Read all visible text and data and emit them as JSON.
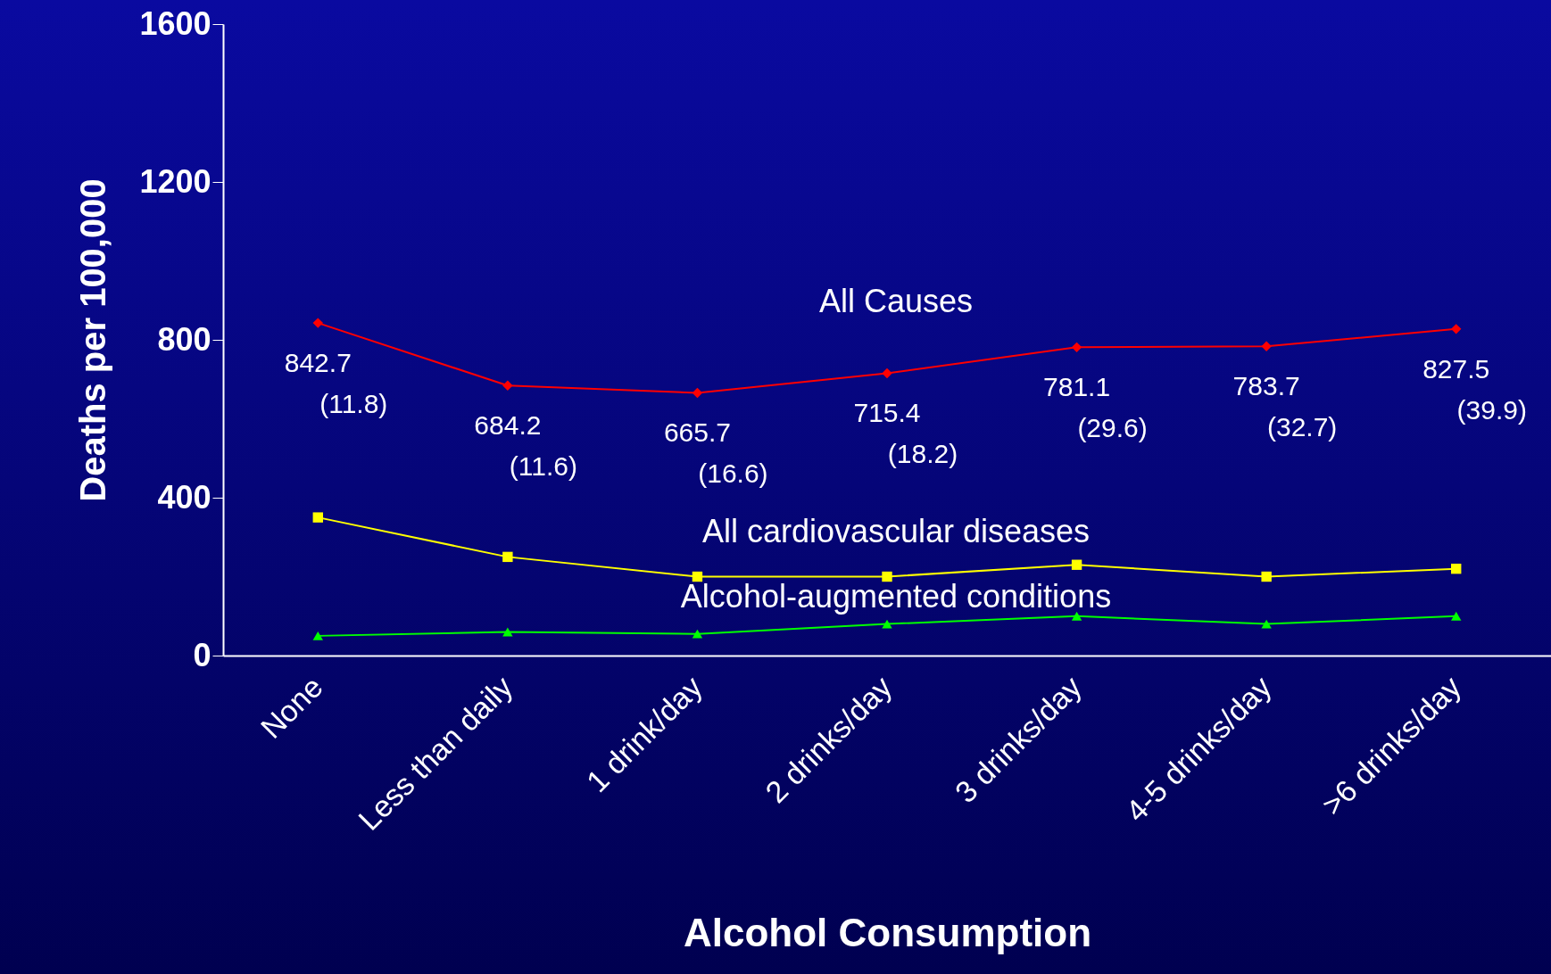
{
  "chart_data": {
    "type": "line",
    "xlabel": "Alcohol Consumption",
    "ylabel": "Deaths per 100,000",
    "categories": [
      "None",
      "Less than daily",
      "1 drink/day",
      "2 drinks/day",
      "3 drinks/day",
      "4-5 drinks/day",
      ">6 drinks/day"
    ],
    "series": [
      {
        "name": "All Causes",
        "color": "#ff0000",
        "marker": "diamond",
        "values": [
          842.7,
          684.2,
          665.7,
          715.4,
          781.1,
          783.7,
          827.5
        ],
        "value_labels": [
          "842.7",
          "684.2",
          "665.7",
          "715.4",
          "781.1",
          "783.7",
          "827.5"
        ]
      },
      {
        "name": "All cardiovascular diseases",
        "color": "#ffff00",
        "marker": "square",
        "values": [
          350,
          250,
          200,
          200,
          230,
          200,
          220
        ]
      },
      {
        "name": "Alcohol-augmented conditions",
        "color": "#00ff00",
        "marker": "triangle",
        "values": [
          50,
          60,
          55,
          80,
          100,
          80,
          100
        ]
      }
    ],
    "annotations": [
      {
        "text": "(11.8)",
        "x": "None",
        "y": 842.7
      },
      {
        "text": "(11.6)",
        "x": "Less than daily",
        "y": 684.2
      },
      {
        "text": "(16.6)",
        "x": "1 drink/day",
        "y": 665.7
      },
      {
        "text": "(18.2)",
        "x": "2 drinks/day",
        "y": 715.4
      },
      {
        "text": "(29.6)",
        "x": "3 drinks/day",
        "y": 781.1
      },
      {
        "text": "(32.7)",
        "x": "4-5 drinks/day",
        "y": 783.7
      },
      {
        "text": "(39.9)",
        "x": ">6 drinks/day",
        "y": 827.5
      }
    ],
    "ylim": [
      0,
      1600
    ],
    "yticks": [
      0,
      400,
      800,
      1200,
      1600
    ],
    "grid": false
  }
}
